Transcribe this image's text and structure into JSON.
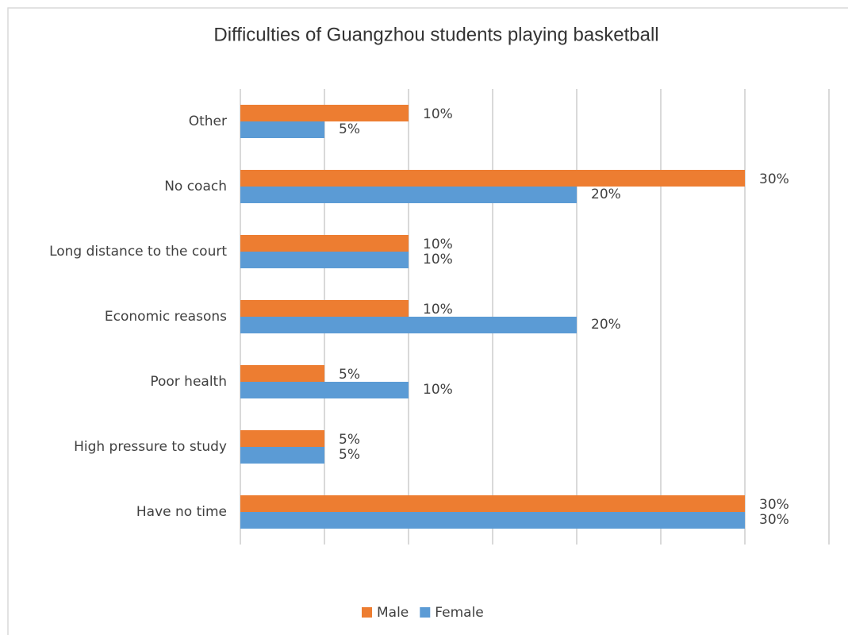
{
  "chart_data": {
    "type": "barh",
    "title": "Difficulties of Guangzhou students playing basketball",
    "categories": [
      "Other",
      "No coach",
      "Long distance to the court",
      "Economic reasons",
      "Poor health",
      "High pressure to study",
      "Have no time"
    ],
    "series": [
      {
        "name": "Male",
        "color": "#ed7d31",
        "values": [
          10,
          30,
          10,
          10,
          5,
          5,
          30
        ],
        "value_labels": [
          "10%",
          "30%",
          "10%",
          "10%",
          "5%",
          "5%",
          "30%"
        ]
      },
      {
        "name": "Female",
        "color": "#5b9bd5",
        "values": [
          5,
          20,
          10,
          20,
          10,
          5,
          30
        ],
        "value_labels": [
          "5%",
          "20%",
          "10%",
          "20%",
          "10%",
          "5%",
          "30%"
        ]
      }
    ],
    "xlim": [
      0,
      35
    ],
    "xticks": [
      0,
      5,
      10,
      15,
      20,
      25,
      30,
      35
    ],
    "grid": true,
    "legend": "bottom"
  }
}
